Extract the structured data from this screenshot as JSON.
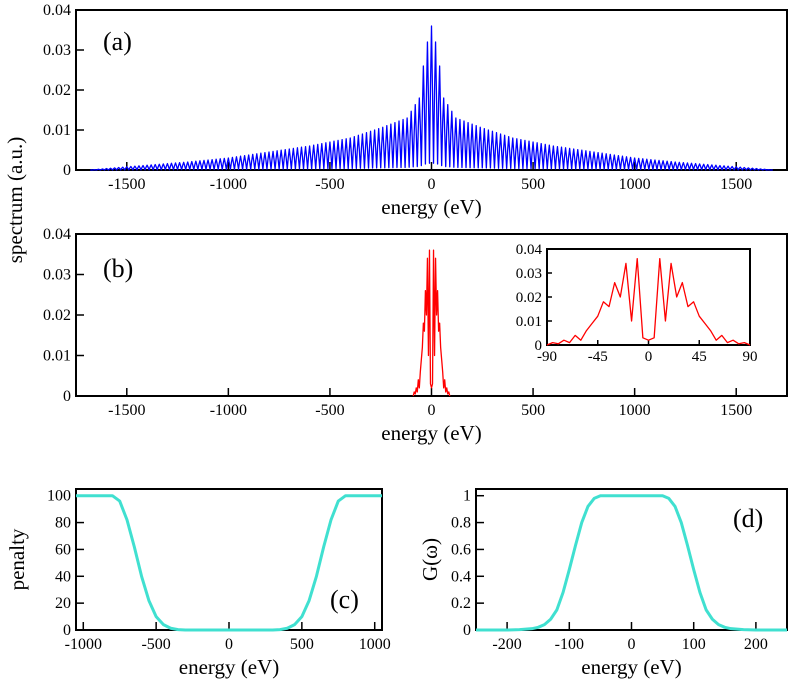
{
  "chart_data": [
    {
      "id": "a",
      "type": "line",
      "panel_label": "(a)",
      "xlabel": "energy (eV)",
      "ylabel": "",
      "xlim": [
        -1750,
        1750
      ],
      "ylim": [
        0,
        0.04
      ],
      "xticks": [
        -1500,
        -1000,
        -500,
        0,
        500,
        1000,
        1500
      ],
      "yticks": [
        0,
        0.01,
        0.02,
        0.03,
        0.04
      ],
      "ytick_labels": [
        "0",
        "0.01",
        "0.02",
        "0.03",
        "0.04"
      ],
      "series": [
        {
          "name": "spectrum (a)",
          "color": "#0000ff",
          "envelope_x": [
            -1680,
            -1500,
            -1200,
            -1000,
            -800,
            -600,
            -400,
            -250,
            -120,
            -60,
            -30,
            0,
            30,
            60,
            120,
            250,
            400,
            600,
            800,
            1000,
            1200,
            1500,
            1680
          ],
          "envelope_y": [
            0,
            0.0008,
            0.002,
            0.003,
            0.0045,
            0.006,
            0.008,
            0.0105,
            0.013,
            0.018,
            0.03,
            0.036,
            0.03,
            0.018,
            0.013,
            0.0105,
            0.008,
            0.006,
            0.0045,
            0.003,
            0.002,
            0.0008,
            0
          ],
          "oscillation_period_eV": 20
        }
      ]
    },
    {
      "id": "b",
      "type": "line",
      "panel_label": "(b)",
      "xlabel": "energy (eV)",
      "ylabel": "",
      "xlim": [
        -1750,
        1750
      ],
      "ylim": [
        0,
        0.04
      ],
      "xticks": [
        -1500,
        -1000,
        -500,
        0,
        500,
        1000,
        1500
      ],
      "yticks": [
        0,
        0.01,
        0.02,
        0.03,
        0.04
      ],
      "ytick_labels": [
        "0",
        "0.01",
        "0.02",
        "0.03",
        "0.04"
      ],
      "series": [
        {
          "name": "spectrum (b)",
          "color": "#ff0000",
          "x": [
            -90,
            -85,
            -80,
            -75,
            -70,
            -65,
            -60,
            -55,
            -50,
            -45,
            -40,
            -35,
            -30,
            -25,
            -20,
            -15,
            -10,
            -5,
            0,
            5,
            10,
            15,
            20,
            25,
            30,
            35,
            40,
            45,
            50,
            55,
            60,
            65,
            70,
            75,
            80,
            85,
            90
          ],
          "y": [
            0,
            0.001,
            0.0005,
            0.002,
            0.001,
            0.004,
            0.002,
            0.006,
            0.009,
            0.012,
            0.018,
            0.016,
            0.026,
            0.02,
            0.034,
            0.01,
            0.036,
            0.003,
            0.002,
            0.003,
            0.036,
            0.01,
            0.034,
            0.02,
            0.026,
            0.016,
            0.018,
            0.012,
            0.009,
            0.006,
            0.002,
            0.004,
            0.001,
            0.002,
            0.0005,
            0.001,
            0
          ]
        }
      ],
      "inset": {
        "xlim": [
          -90,
          90
        ],
        "ylim": [
          0,
          0.04
        ],
        "xticks": [
          -90,
          -45,
          0,
          45,
          90
        ],
        "yticks": [
          0,
          0.01,
          0.02,
          0.03,
          0.04
        ],
        "ytick_labels": [
          "0",
          "0.01",
          "0.02",
          "0.03",
          "0.04"
        ]
      }
    },
    {
      "id": "c",
      "type": "line",
      "panel_label": "(c)",
      "xlabel": "energy (eV)",
      "ylabel": "penalty",
      "xlim": [
        -1050,
        1050
      ],
      "ylim": [
        0,
        105
      ],
      "xticks": [
        -1000,
        -500,
        0,
        500,
        1000
      ],
      "yticks": [
        0,
        20,
        40,
        60,
        80,
        100
      ],
      "ytick_labels": [
        "0",
        "20",
        "40",
        "60",
        "80",
        "100"
      ],
      "series": [
        {
          "name": "penalty",
          "color": "#40e0d0",
          "x": [
            -1050,
            -800,
            -750,
            -700,
            -650,
            -600,
            -550,
            -500,
            -450,
            -400,
            -350,
            -300,
            300,
            350,
            400,
            450,
            500,
            550,
            600,
            650,
            700,
            750,
            800,
            1050
          ],
          "y": [
            100,
            100,
            96,
            82,
            62,
            40,
            22,
            10,
            4,
            1.3,
            0.3,
            0,
            0,
            0.3,
            1.3,
            4,
            10,
            22,
            40,
            62,
            82,
            96,
            100,
            100
          ]
        }
      ]
    },
    {
      "id": "d",
      "type": "line",
      "panel_label": "(d)",
      "xlabel": "energy (eV)",
      "ylabel": "G(ω)",
      "xlim": [
        -250,
        250
      ],
      "ylim": [
        0,
        1.05
      ],
      "xticks": [
        -200,
        -100,
        0,
        100,
        200
      ],
      "yticks": [
        0,
        0.2,
        0.4,
        0.6,
        0.8,
        1
      ],
      "ytick_labels": [
        "0",
        "0.2",
        "0.4",
        "0.6",
        "0.8",
        "1"
      ],
      "series": [
        {
          "name": "G(ω)",
          "color": "#40e0d0",
          "x": [
            -250,
            -200,
            -180,
            -160,
            -150,
            -140,
            -130,
            -120,
            -110,
            -100,
            -90,
            -80,
            -70,
            -60,
            -50,
            50,
            60,
            70,
            80,
            90,
            100,
            110,
            120,
            130,
            140,
            150,
            160,
            180,
            200,
            250
          ],
          "y": [
            0,
            0,
            0.003,
            0.01,
            0.02,
            0.04,
            0.08,
            0.15,
            0.28,
            0.45,
            0.63,
            0.8,
            0.92,
            0.98,
            1,
            1,
            0.98,
            0.92,
            0.8,
            0.63,
            0.45,
            0.28,
            0.15,
            0.08,
            0.04,
            0.02,
            0.01,
            0.003,
            0,
            0
          ]
        }
      ]
    }
  ],
  "shared_ylabel": "spectrum (a.u.)"
}
